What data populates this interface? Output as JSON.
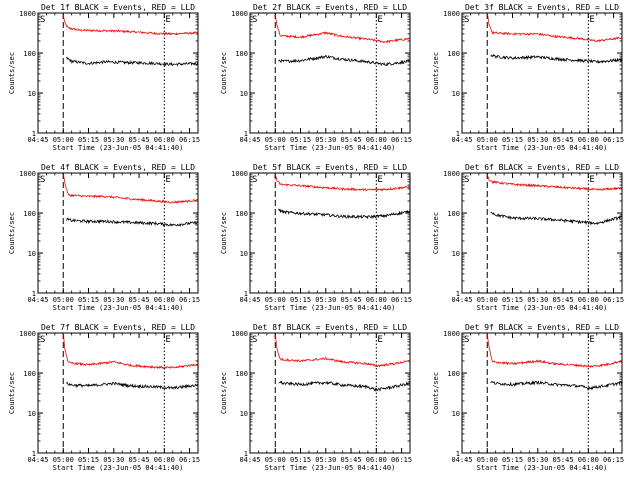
{
  "chart_data": {
    "type": "line",
    "layout": "3x3 grid of panels",
    "y_scale": "log",
    "ylim": [
      1,
      1000
    ],
    "ylabel": "Counts/sec",
    "y_tick_labels": [
      "1",
      "10",
      "100",
      "1000"
    ],
    "x_tick_labels": [
      "04:45",
      "05:00",
      "05:15",
      "05:30",
      "05:45",
      "06:00",
      "06:15"
    ],
    "x_range_minutes": [
      0,
      95
    ],
    "xlabel": "Start Time (23-Jun-05 04:41:40)",
    "marker_S_label": "S",
    "marker_E_label": "E",
    "marker_S_minute": 15,
    "marker_E_minute": 75,
    "colors": {
      "events": "#000000",
      "lld": "#ff0000"
    },
    "series_names": [
      "Events",
      "LLD"
    ],
    "panels": [
      {
        "title": "Det 1f BLACK = Events, RED = LLD",
        "events_shape": [
          [
            17,
            75
          ],
          [
            20,
            62
          ],
          [
            30,
            55
          ],
          [
            40,
            60
          ],
          [
            50,
            58
          ],
          [
            60,
            57
          ],
          [
            70,
            55
          ],
          [
            80,
            52
          ],
          [
            95,
            55
          ]
        ],
        "lld_shape": [
          [
            15,
            900
          ],
          [
            16,
            550
          ],
          [
            18,
            420
          ],
          [
            25,
            370
          ],
          [
            40,
            360
          ],
          [
            50,
            350
          ],
          [
            70,
            310
          ],
          [
            80,
            300
          ],
          [
            95,
            320
          ]
        ]
      },
      {
        "title": "Det 2f BLACK = Events, RED = LLD",
        "events_shape": [
          [
            17,
            65
          ],
          [
            20,
            62
          ],
          [
            30,
            65
          ],
          [
            45,
            82
          ],
          [
            55,
            70
          ],
          [
            70,
            60
          ],
          [
            80,
            52
          ],
          [
            95,
            62
          ]
        ],
        "lld_shape": [
          [
            15,
            950
          ],
          [
            16,
            500
          ],
          [
            18,
            270
          ],
          [
            30,
            250
          ],
          [
            45,
            320
          ],
          [
            55,
            260
          ],
          [
            70,
            220
          ],
          [
            80,
            190
          ],
          [
            95,
            230
          ]
        ]
      },
      {
        "title": "Det 3f BLACK = Events, RED = LLD",
        "events_shape": [
          [
            17,
            90
          ],
          [
            20,
            82
          ],
          [
            30,
            75
          ],
          [
            45,
            80
          ],
          [
            55,
            72
          ],
          [
            70,
            65
          ],
          [
            80,
            60
          ],
          [
            95,
            68
          ]
        ],
        "lld_shape": [
          [
            15,
            950
          ],
          [
            16,
            550
          ],
          [
            18,
            320
          ],
          [
            30,
            300
          ],
          [
            45,
            300
          ],
          [
            55,
            260
          ],
          [
            70,
            230
          ],
          [
            80,
            200
          ],
          [
            95,
            240
          ]
        ]
      },
      {
        "title": "Det 4f BLACK = Events, RED = LLD",
        "events_shape": [
          [
            17,
            70
          ],
          [
            20,
            65
          ],
          [
            30,
            62
          ],
          [
            40,
            62
          ],
          [
            55,
            58
          ],
          [
            70,
            55
          ],
          [
            80,
            50
          ],
          [
            95,
            58
          ]
        ],
        "lld_shape": [
          [
            15,
            950
          ],
          [
            16,
            550
          ],
          [
            18,
            280
          ],
          [
            30,
            260
          ],
          [
            40,
            260
          ],
          [
            55,
            225
          ],
          [
            70,
            200
          ],
          [
            80,
            185
          ],
          [
            95,
            210
          ]
        ]
      },
      {
        "title": "Det 5f BLACK = Events, RED = LLD",
        "events_shape": [
          [
            17,
            120
          ],
          [
            20,
            105
          ],
          [
            30,
            98
          ],
          [
            45,
            90
          ],
          [
            55,
            82
          ],
          [
            70,
            80
          ],
          [
            80,
            85
          ],
          [
            95,
            110
          ]
        ],
        "lld_shape": [
          [
            15,
            950
          ],
          [
            16,
            650
          ],
          [
            18,
            520
          ],
          [
            30,
            480
          ],
          [
            45,
            430
          ],
          [
            55,
            400
          ],
          [
            70,
            380
          ],
          [
            80,
            390
          ],
          [
            95,
            450
          ]
        ]
      },
      {
        "title": "Det 6f BLACK = Events, RED = LLD",
        "events_shape": [
          [
            17,
            110
          ],
          [
            20,
            90
          ],
          [
            30,
            75
          ],
          [
            45,
            72
          ],
          [
            55,
            68
          ],
          [
            70,
            60
          ],
          [
            80,
            55
          ],
          [
            95,
            80
          ]
        ],
        "lld_shape": [
          [
            15,
            950
          ],
          [
            16,
            700
          ],
          [
            18,
            600
          ],
          [
            30,
            520
          ],
          [
            45,
            480
          ],
          [
            55,
            450
          ],
          [
            70,
            410
          ],
          [
            80,
            380
          ],
          [
            95,
            420
          ]
        ]
      },
      {
        "title": "Det 7f BLACK = Events, RED = LLD",
        "events_shape": [
          [
            17,
            55
          ],
          [
            20,
            50
          ],
          [
            30,
            48
          ],
          [
            45,
            55
          ],
          [
            55,
            48
          ],
          [
            70,
            45
          ],
          [
            80,
            42
          ],
          [
            95,
            50
          ]
        ],
        "lld_shape": [
          [
            15,
            950
          ],
          [
            16,
            400
          ],
          [
            18,
            180
          ],
          [
            30,
            160
          ],
          [
            45,
            190
          ],
          [
            55,
            155
          ],
          [
            70,
            140
          ],
          [
            80,
            135
          ],
          [
            95,
            165
          ]
        ]
      },
      {
        "title": "Det 8f BLACK = Events, RED = LLD",
        "events_shape": [
          [
            17,
            60
          ],
          [
            20,
            55
          ],
          [
            30,
            52
          ],
          [
            45,
            58
          ],
          [
            55,
            50
          ],
          [
            70,
            45
          ],
          [
            75,
            38
          ],
          [
            85,
            45
          ],
          [
            95,
            55
          ]
        ],
        "lld_shape": [
          [
            15,
            950
          ],
          [
            16,
            400
          ],
          [
            18,
            220
          ],
          [
            30,
            200
          ],
          [
            45,
            230
          ],
          [
            55,
            190
          ],
          [
            70,
            170
          ],
          [
            75,
            150
          ],
          [
            85,
            170
          ],
          [
            95,
            200
          ]
        ]
      },
      {
        "title": "Det 9f BLACK = Events, RED = LLD",
        "events_shape": [
          [
            17,
            60
          ],
          [
            20,
            55
          ],
          [
            30,
            52
          ],
          [
            45,
            58
          ],
          [
            55,
            52
          ],
          [
            70,
            47
          ],
          [
            75,
            42
          ],
          [
            85,
            48
          ],
          [
            95,
            58
          ]
        ],
        "lld_shape": [
          [
            15,
            950
          ],
          [
            16,
            450
          ],
          [
            18,
            190
          ],
          [
            30,
            170
          ],
          [
            45,
            200
          ],
          [
            55,
            170
          ],
          [
            70,
            155
          ],
          [
            75,
            145
          ],
          [
            85,
            160
          ],
          [
            95,
            200
          ]
        ]
      }
    ]
  }
}
